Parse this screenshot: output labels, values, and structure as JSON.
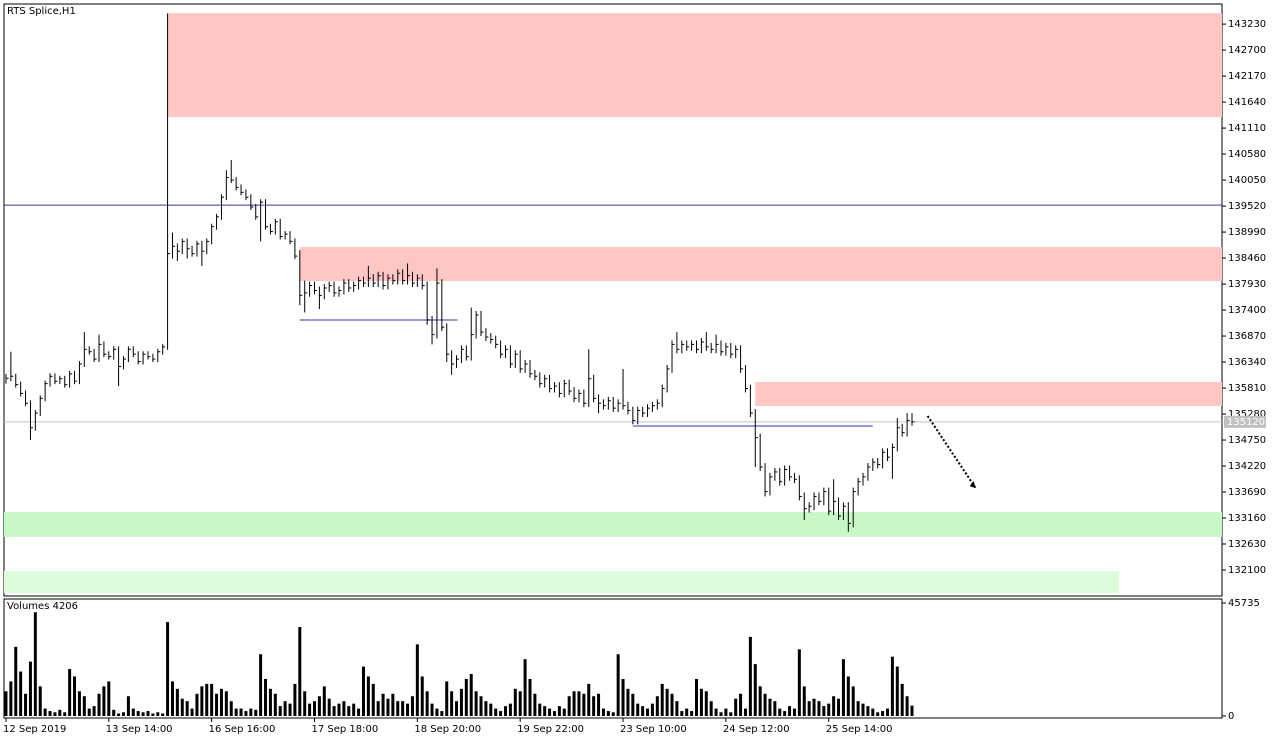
{
  "chart_data": [
    {
      "type": "ohlc",
      "title": "RTS Splice,H1",
      "color": "#000000",
      "xlim": [
        -0.4,
        248.3
      ],
      "xticks": [
        {
          "value": 0,
          "label": "12 Sep 2019"
        },
        {
          "value": 21,
          "label": "13 Sep 14:00"
        },
        {
          "value": 42,
          "label": "16 Sep 16:00"
        },
        {
          "value": 63,
          "label": "17 Sep 18:00"
        },
        {
          "value": 84,
          "label": "18 Sep 20:00"
        },
        {
          "value": 105,
          "label": "19 Sep 22:00"
        },
        {
          "value": 126,
          "label": "23 Sep 10:00"
        },
        {
          "value": 147,
          "label": "24 Sep 12:00"
        },
        {
          "value": 168,
          "label": "25 Sep 14:00"
        }
      ],
      "ylim": [
        131570,
        143640
      ],
      "yticks": [
        143230,
        142700,
        142170,
        141640,
        141110,
        140580,
        140050,
        139520,
        138990,
        138460,
        137930,
        137400,
        136870,
        136340,
        135810,
        135280,
        134750,
        134220,
        133690,
        133160,
        132630,
        132100
      ],
      "high": [
        136100,
        136550,
        136100,
        135940,
        135760,
        135560,
        135360,
        135660,
        135960,
        136110,
        136110,
        136060,
        136060,
        136160,
        136160,
        136360,
        136950,
        136660,
        136610,
        136900,
        136760,
        136560,
        136660,
        136660,
        136460,
        136660,
        136660,
        136560,
        136560,
        136560,
        136510,
        136610,
        136710,
        143450,
        138980,
        138760,
        138860,
        138860,
        138710,
        138810,
        138810,
        138860,
        139160,
        139360,
        139760,
        140250,
        140460,
        140110,
        139960,
        139860,
        139760,
        139560,
        139660,
        139660,
        139160,
        139260,
        139260,
        139010,
        139010,
        138860,
        138620,
        138000,
        137980,
        137980,
        137880,
        137930,
        137980,
        137980,
        137880,
        138030,
        138030,
        137980,
        138080,
        138080,
        138300,
        138130,
        138180,
        138180,
        138130,
        138130,
        138230,
        138230,
        138350,
        138180,
        138130,
        138130,
        137980,
        137280,
        138250,
        138030,
        137130,
        136580,
        136480,
        136680,
        136680,
        137450,
        137380,
        137380,
        137030,
        136930,
        136880,
        136780,
        136680,
        136680,
        136580,
        136580,
        136380,
        136380,
        136180,
        136130,
        136080,
        136080,
        135930,
        135930,
        135980,
        135980,
        135830,
        135780,
        135780,
        136600,
        136080,
        135680,
        135580,
        135630,
        135630,
        135580,
        136200,
        135530,
        135430,
        135430,
        135430,
        135480,
        135530,
        135580,
        135880,
        136280,
        136780,
        136950,
        136780,
        136780,
        136780,
        136780,
        136830,
        136950,
        136730,
        136900,
        136780,
        136730,
        136730,
        136680,
        136680,
        136280,
        135880,
        135380,
        134880,
        134280,
        134080,
        134180,
        134180,
        134230,
        134230,
        134080,
        134030,
        133680,
        133480,
        133680,
        133680,
        133780,
        133780,
        133950,
        133580,
        133480,
        133480,
        133780,
        133980,
        134080,
        134280,
        134380,
        134380,
        134580,
        134580,
        134680,
        135200,
        135080,
        135300,
        135300
      ],
      "low": [
        135900,
        135950,
        135820,
        135640,
        135440,
        134750,
        134940,
        135240,
        135540,
        135840,
        135890,
        135890,
        135820,
        135820,
        135890,
        135890,
        136240,
        136490,
        136340,
        136340,
        136440,
        136390,
        136390,
        135850,
        136190,
        136340,
        136440,
        136290,
        136290,
        136390,
        136340,
        136340,
        136490,
        136590,
        138450,
        138400,
        138540,
        138450,
        138490,
        138490,
        138300,
        138540,
        138740,
        139040,
        139240,
        139640,
        139990,
        139840,
        139740,
        139640,
        139440,
        139240,
        138800,
        139040,
        138940,
        138940,
        138840,
        138840,
        138740,
        138440,
        137500,
        137350,
        137670,
        137720,
        137420,
        137620,
        137770,
        137670,
        137670,
        137720,
        137770,
        137770,
        137820,
        137870,
        137870,
        137870,
        137870,
        137820,
        137820,
        137920,
        137920,
        137920,
        137920,
        137870,
        137870,
        137820,
        137100,
        136700,
        136820,
        136970,
        136340,
        136080,
        136220,
        136320,
        136370,
        136370,
        136820,
        136870,
        136770,
        136720,
        136620,
        136420,
        136420,
        136220,
        136220,
        136120,
        136120,
        136020,
        135970,
        135820,
        135820,
        135720,
        135720,
        135620,
        135620,
        135670,
        135520,
        135520,
        135420,
        135420,
        135520,
        135300,
        135370,
        135370,
        135320,
        135320,
        135370,
        135270,
        135070,
        135070,
        135220,
        135220,
        135320,
        135370,
        135420,
        135720,
        136120,
        136520,
        136520,
        136570,
        136570,
        136520,
        136520,
        136570,
        136520,
        136520,
        136470,
        136470,
        136420,
        136420,
        136120,
        135720,
        135220,
        134200,
        134120,
        133600,
        133620,
        133920,
        133820,
        133820,
        133920,
        133870,
        133520,
        133120,
        133270,
        133320,
        133420,
        133420,
        133220,
        133220,
        133120,
        133120,
        132880,
        132970,
        133620,
        133820,
        133920,
        134120,
        134170,
        134170,
        134320,
        133960,
        134520,
        134820,
        134820,
        135040
      ],
      "close": [
        136010,
        136050,
        135880,
        135700,
        135500,
        135000,
        135300,
        135600,
        135900,
        136050,
        135950,
        136000,
        135880,
        136100,
        135950,
        136300,
        136600,
        136550,
        136400,
        136700,
        136500,
        136450,
        136600,
        136250,
        136400,
        136600,
        136500,
        136350,
        136500,
        136450,
        136400,
        136550,
        136650,
        138550,
        138700,
        138600,
        138800,
        138650,
        138550,
        138750,
        138600,
        138800,
        139100,
        139300,
        139700,
        140100,
        140050,
        139900,
        139800,
        139700,
        139500,
        139300,
        139600,
        139100,
        139000,
        139200,
        138900,
        138950,
        138800,
        138500,
        137700,
        137750,
        137900,
        137800,
        137700,
        137850,
        137900,
        137750,
        137800,
        137950,
        137850,
        137900,
        138000,
        137950,
        138050,
        137950,
        138100,
        137900,
        138050,
        138000,
        138150,
        138000,
        138100,
        137950,
        138050,
        137900,
        137200,
        136900,
        137950,
        137050,
        136500,
        136300,
        136400,
        136600,
        136450,
        136900,
        137300,
        136950,
        136850,
        136800,
        136700,
        136500,
        136600,
        136300,
        136500,
        136200,
        136300,
        136100,
        136050,
        135900,
        136000,
        135800,
        135850,
        135700,
        135900,
        135750,
        135600,
        135700,
        135500,
        136000,
        135600,
        135500,
        135450,
        135550,
        135400,
        135500,
        135450,
        135350,
        135150,
        135350,
        135300,
        135400,
        135450,
        135500,
        135800,
        136200,
        136700,
        136600,
        136700,
        136650,
        136700,
        136600,
        136750,
        136650,
        136600,
        136700,
        136550,
        136650,
        136500,
        136600,
        136200,
        135800,
        135300,
        134800,
        134200,
        133700,
        134000,
        134100,
        133900,
        134150,
        134000,
        133950,
        133600,
        133350,
        133400,
        133600,
        133500,
        133700,
        133300,
        133500,
        133200,
        133400,
        133050,
        133700,
        133900,
        134000,
        134200,
        134300,
        134250,
        134500,
        134400,
        134600,
        135000,
        134900,
        135150,
        135120
      ],
      "zones": [
        {
          "x": [
            33,
            248.3
          ],
          "y": [
            141334,
            143454
          ],
          "color": "#ffc6c6"
        },
        {
          "x": [
            60,
            248.3
          ],
          "y": [
            137992,
            138685
          ],
          "color": "#ffc6c6"
        },
        {
          "x": [
            153,
            248.3
          ],
          "y": [
            135444,
            135933
          ],
          "color": "#ffc6c6"
        },
        {
          "x": [
            -0.4,
            248.3
          ],
          "y": [
            132774,
            133283
          ],
          "color": "#c8f8c8"
        },
        {
          "x": [
            -0.4,
            227.3
          ],
          "y": [
            131632,
            132080
          ],
          "color": "#dcfcdc"
        }
      ],
      "hlines": [
        {
          "x": [
            -0.4,
            248.3
          ],
          "y": 139540,
          "color": "#3333aa"
        },
        {
          "x": [
            60,
            92.2
          ],
          "y": 137196,
          "color": "#3333aa"
        },
        {
          "x": [
            128,
            177
          ],
          "y": 135036,
          "color": "#3333aa"
        },
        {
          "x": [
            -0.4,
            248.3
          ],
          "y": 135120,
          "color": "#c0c0c0"
        }
      ],
      "last_price": 135120,
      "arrow": {
        "x": [
          188.2,
          198
        ],
        "y": [
          135240,
          133770
        ]
      }
    },
    {
      "type": "bar",
      "title": "Volumes 4206",
      "color": "#000000",
      "ylim": [
        0,
        45735
      ],
      "yticks": [
        45735,
        0
      ],
      "values": [
        10000,
        14000,
        28000,
        18000,
        9000,
        22000,
        42000,
        12000,
        3000,
        2000,
        1500,
        2500,
        1500,
        19000,
        16000,
        10000,
        8000,
        3000,
        4000,
        9000,
        12000,
        14000,
        2500,
        1000,
        1500,
        8000,
        3000,
        2000,
        1500,
        2000,
        1000,
        1500,
        1000,
        38000,
        14000,
        11000,
        7000,
        6000,
        3000,
        9000,
        12000,
        13000,
        13000,
        9000,
        11000,
        10000,
        6000,
        3000,
        3000,
        2000,
        3000,
        2500,
        25000,
        15000,
        11000,
        9000,
        4000,
        6000,
        5000,
        13000,
        36000,
        10000,
        5000,
        6000,
        8000,
        12000,
        7000,
        4000,
        5000,
        6000,
        4000,
        5000,
        3000,
        20000,
        16000,
        13000,
        6000,
        9000,
        7000,
        9000,
        6000,
        6000,
        5000,
        8000,
        29000,
        16000,
        10000,
        5000,
        3000,
        2000,
        14000,
        10000,
        6000,
        11000,
        15000,
        17000,
        10000,
        8000,
        6000,
        5000,
        3000,
        2000,
        4000,
        5000,
        11000,
        10000,
        23000,
        15000,
        9000,
        5000,
        4000,
        3000,
        2000,
        4000,
        3000,
        8000,
        10000,
        10000,
        9000,
        13000,
        8000,
        9000,
        3000,
        2000,
        1500,
        25000,
        15000,
        11000,
        9000,
        5000,
        4000,
        3000,
        5000,
        8000,
        13000,
        11000,
        9000,
        6000,
        2000,
        3000,
        2000,
        15000,
        11000,
        10000,
        6000,
        3000,
        1500,
        3000,
        1500,
        7000,
        9000,
        3000,
        32000,
        21000,
        12000,
        9000,
        7000,
        6000,
        3000,
        2000,
        4000,
        3000,
        27000,
        12000,
        6000,
        7000,
        6000,
        4000,
        5000,
        8000,
        7000,
        23000,
        16000,
        12000,
        6000,
        5000,
        4000,
        3000,
        1500,
        2000,
        3000,
        24000,
        20000,
        13000,
        8000,
        4206
      ]
    }
  ]
}
